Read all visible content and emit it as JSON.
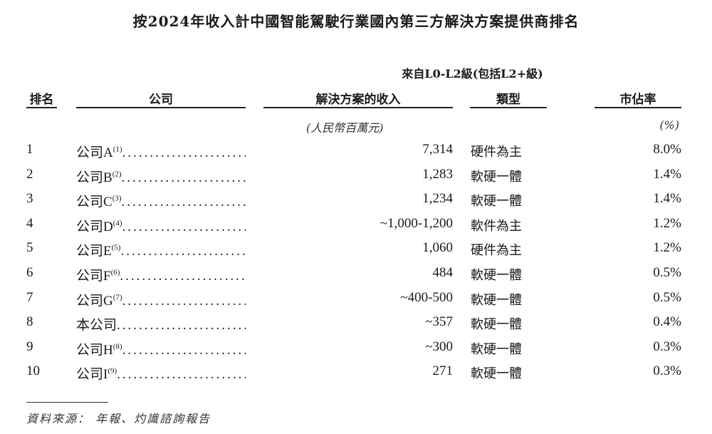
{
  "title": "按2024年收入計中國智能駕駛行業國內第三方解決方案提供商排名",
  "subheader": "來自L0-L2級(包括L2+級)",
  "columns": {
    "rank": "排名",
    "company": "公司",
    "revenue": "解決方案的收入",
    "type": "類型",
    "share": "市佔率"
  },
  "units": {
    "revenue": "(人民幣百萬元)",
    "share": "(%)"
  },
  "rows": [
    {
      "rank": "1",
      "company": "公司A",
      "note": "(1)",
      "revenue": "7,314",
      "type": "硬件為主",
      "share": "8.0%"
    },
    {
      "rank": "2",
      "company": "公司B",
      "note": "(2)",
      "revenue": "1,283",
      "type": "軟硬一體",
      "share": "1.4%"
    },
    {
      "rank": "3",
      "company": "公司C",
      "note": "(3)",
      "revenue": "1,234",
      "type": "軟硬一體",
      "share": "1.4%"
    },
    {
      "rank": "4",
      "company": "公司D",
      "note": "(4)",
      "revenue": "~1,000-1,200",
      "type": "軟件為主",
      "share": "1.2%"
    },
    {
      "rank": "5",
      "company": "公司E",
      "note": "(5)",
      "revenue": "1,060",
      "type": "硬件為主",
      "share": "1.2%"
    },
    {
      "rank": "6",
      "company": "公司F",
      "note": "(6)",
      "revenue": "484",
      "type": "軟硬一體",
      "share": "0.5%"
    },
    {
      "rank": "7",
      "company": "公司G",
      "note": "(7)",
      "revenue": "~400-500",
      "type": "軟硬一體",
      "share": "0.5%"
    },
    {
      "rank": "8",
      "company": "本公司",
      "note": "",
      "revenue": "~357",
      "type": "軟硬一體",
      "share": "0.4%"
    },
    {
      "rank": "9",
      "company": "公司H",
      "note": "(8)",
      "revenue": "~300",
      "type": "軟硬一體",
      "share": "0.3%"
    },
    {
      "rank": "10",
      "company": "公司I",
      "note": "(9)",
      "revenue": "271",
      "type": "軟硬一體",
      "share": "0.3%"
    }
  ],
  "source": "資料來源： 年報、灼識諮詢報告"
}
